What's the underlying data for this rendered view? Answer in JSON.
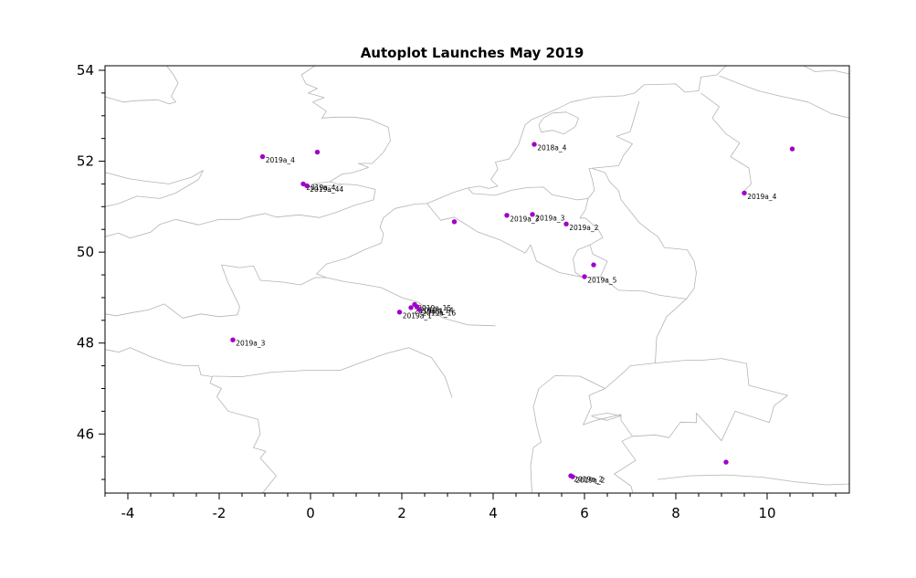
{
  "window": {
    "background": "#ffffff"
  },
  "chart_data": {
    "type": "scatter",
    "title": "Autoplot Launches May 2019",
    "xlabel": "",
    "ylabel": "",
    "xlim": [
      -4.5,
      11.8
    ],
    "ylim": [
      44.7,
      54.1
    ],
    "x_ticks": [
      -4,
      -2,
      0,
      2,
      4,
      6,
      8,
      10
    ],
    "y_ticks": [
      46,
      48,
      50,
      52,
      54
    ],
    "minor_tick_step": 0.5,
    "grid": false,
    "legend": "none",
    "basemap": "western-europe-coastlines-and-borders",
    "map_outline_color": "#b4b4b4",
    "marker": {
      "shape": "circle",
      "size": 3,
      "color": "#a000c8"
    },
    "label_color": "#000000",
    "points": [
      {
        "x": -1.05,
        "y": 52.1,
        "label": "2019a_4"
      },
      {
        "x": 0.15,
        "y": 52.2,
        "label": ""
      },
      {
        "x": -0.16,
        "y": 51.5,
        "label": "2019a_4"
      },
      {
        "x": -0.08,
        "y": 51.46,
        "label": "2019a_44"
      },
      {
        "x": 3.15,
        "y": 50.67,
        "label": ""
      },
      {
        "x": 4.3,
        "y": 50.81,
        "label": "2019a_3"
      },
      {
        "x": 4.86,
        "y": 50.83,
        "label": "2019a_3"
      },
      {
        "x": 5.6,
        "y": 50.62,
        "label": "2019a_2"
      },
      {
        "x": 4.9,
        "y": 52.37,
        "label": "2018a_4"
      },
      {
        "x": 9.5,
        "y": 51.3,
        "label": "2019a_4"
      },
      {
        "x": 10.55,
        "y": 52.27,
        "label": ""
      },
      {
        "x": 6.2,
        "y": 49.72,
        "label": ""
      },
      {
        "x": 6.0,
        "y": 49.46,
        "label": "2019a_5"
      },
      {
        "x": 1.95,
        "y": 48.68,
        "label": "2019a_1"
      },
      {
        "x": 2.2,
        "y": 48.78,
        "label": "2019a_1"
      },
      {
        "x": 2.28,
        "y": 48.85,
        "label": "2019a_15"
      },
      {
        "x": 2.33,
        "y": 48.8,
        "label": "2019a_14"
      },
      {
        "x": 2.38,
        "y": 48.74,
        "label": "2019a_16"
      },
      {
        "x": -1.7,
        "y": 48.07,
        "label": "2019a_3"
      },
      {
        "x": 5.7,
        "y": 45.08,
        "label": "2019a_2"
      },
      {
        "x": 5.74,
        "y": 45.06,
        "label": "2019a_2"
      },
      {
        "x": 9.1,
        "y": 45.38,
        "label": ""
      }
    ]
  }
}
